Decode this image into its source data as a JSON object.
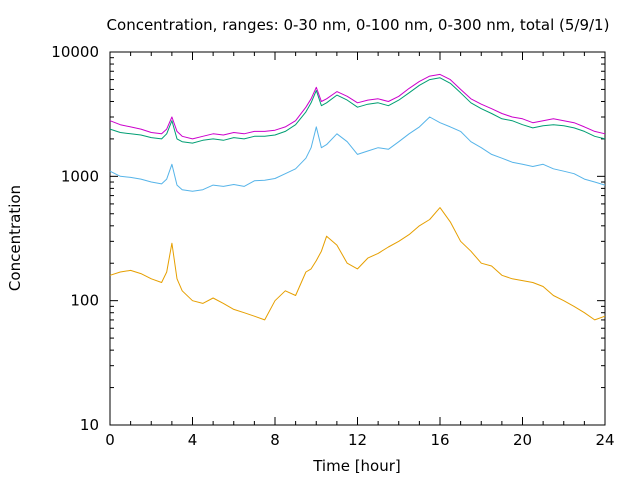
{
  "chart_data": {
    "type": "line",
    "title": "Concentration, ranges: 0-30 nm, 0-100 nm, 0-300 nm, total (5/9/1)",
    "xlabel": "Time [hour]",
    "ylabel": "Concentration",
    "xlim": [
      0,
      24
    ],
    "ylim": [
      10,
      10000
    ],
    "yscale": "log",
    "grid": false,
    "legend": "none",
    "xticks": [
      0,
      4,
      8,
      12,
      16,
      20,
      24
    ],
    "yticks": [
      10,
      100,
      1000,
      10000
    ],
    "x": [
      0,
      0.5,
      1,
      1.5,
      2,
      2.5,
      2.75,
      3,
      3.25,
      3.5,
      4,
      4.5,
      5,
      5.5,
      6,
      6.5,
      7,
      7.5,
      8,
      8.5,
      9,
      9.5,
      9.75,
      10,
      10.25,
      10.5,
      11,
      11.5,
      12,
      12.5,
      13,
      13.5,
      14,
      14.5,
      15,
      15.5,
      16,
      16.5,
      17,
      17.5,
      18,
      18.5,
      19,
      19.5,
      20,
      20.5,
      21,
      21.5,
      22,
      22.5,
      23,
      23.5,
      24
    ],
    "series": [
      {
        "color": "#cc00cc",
        "values": [
          2800,
          2600,
          2500,
          2400,
          2250,
          2200,
          2400,
          3000,
          2300,
          2100,
          2000,
          2100,
          2200,
          2150,
          2250,
          2200,
          2300,
          2300,
          2350,
          2500,
          2800,
          3600,
          4200,
          5200,
          4000,
          4200,
          4800,
          4400,
          3900,
          4100,
          4200,
          4000,
          4400,
          5100,
          5800,
          6400,
          6600,
          6000,
          5000,
          4200,
          3800,
          3500,
          3200,
          3000,
          2900,
          2700,
          2800,
          2900,
          2800,
          2700,
          2500,
          2300,
          2200
        ]
      },
      {
        "color": "#009e73",
        "values": [
          2400,
          2250,
          2200,
          2150,
          2050,
          2000,
          2200,
          2800,
          2000,
          1900,
          1850,
          1950,
          2000,
          1950,
          2050,
          2000,
          2100,
          2100,
          2150,
          2300,
          2600,
          3300,
          3900,
          4900,
          3700,
          3900,
          4500,
          4100,
          3600,
          3800,
          3900,
          3700,
          4100,
          4700,
          5400,
          6000,
          6200,
          5600,
          4700,
          3900,
          3500,
          3200,
          2900,
          2800,
          2600,
          2450,
          2550,
          2600,
          2550,
          2450,
          2300,
          2100,
          2000
        ]
      },
      {
        "color": "#56b4e9",
        "values": [
          1100,
          1000,
          980,
          950,
          900,
          870,
          950,
          1250,
          850,
          780,
          760,
          780,
          850,
          830,
          860,
          830,
          920,
          930,
          960,
          1050,
          1150,
          1400,
          1700,
          2500,
          1700,
          1800,
          2200,
          1900,
          1500,
          1600,
          1700,
          1650,
          1900,
          2200,
          2500,
          3000,
          2700,
          2500,
          2300,
          1900,
          1700,
          1500,
          1400,
          1300,
          1250,
          1200,
          1250,
          1150,
          1100,
          1050,
          950,
          900,
          850
        ]
      },
      {
        "color": "#e69f00",
        "values": [
          160,
          170,
          175,
          165,
          150,
          140,
          170,
          290,
          150,
          120,
          100,
          95,
          105,
          95,
          85,
          80,
          75,
          70,
          100,
          120,
          110,
          170,
          180,
          210,
          250,
          330,
          280,
          200,
          180,
          220,
          240,
          270,
          300,
          340,
          400,
          450,
          560,
          430,
          300,
          250,
          200,
          190,
          160,
          150,
          145,
          140,
          130,
          110,
          100,
          90,
          80,
          70,
          75
        ]
      }
    ]
  }
}
